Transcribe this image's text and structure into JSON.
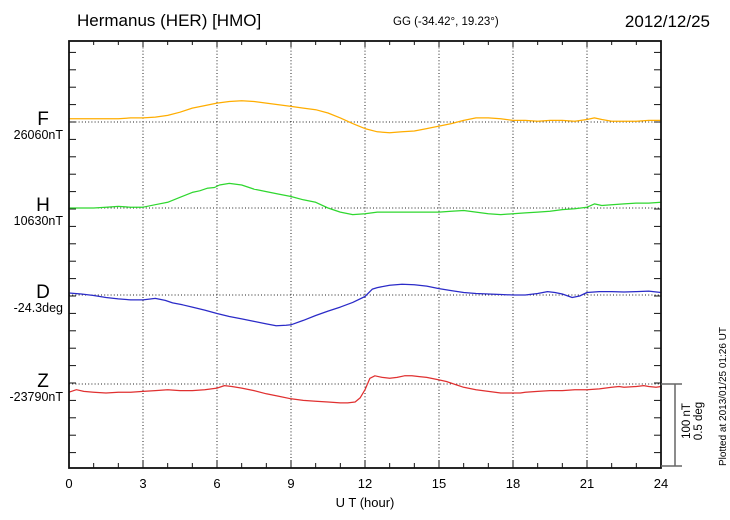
{
  "header": {
    "station_title": "Hermanus (HER)  [HMO]",
    "coordinates": "GG (-34.42°,  19.23°)",
    "date": "2012/12/25"
  },
  "scale_bar": {
    "line1": "100 nT",
    "line2": "0.5 deg"
  },
  "footer_note": "Plotted at 2013/01/25 01:26 UT",
  "chart_data": {
    "type": "line",
    "title": "Hermanus (HER)  [HMO]",
    "subtitle": "GG (-34.42°,  19.23°)  2012/12/25",
    "xlabel": "U T (hour)",
    "x_range_hours": [
      0,
      24
    ],
    "x_ticks": [
      0,
      3,
      6,
      9,
      12,
      15,
      18,
      21,
      24
    ],
    "x_tick_labels": [
      "0",
      "3",
      "6",
      "9",
      "12",
      "15",
      "18",
      "21",
      "24"
    ],
    "grid": "dotted vertical lines every 3 hours; dotted horizontal baseline per component",
    "legend_position": "left margin (component letter + baseline value)",
    "scale": {
      "nT": 100,
      "deg": 0.5
    },
    "series": [
      {
        "name": "F",
        "unit": "nT",
        "base_value": 26060,
        "baseline_label": "26060nT",
        "color": "#FFAD00",
        "points": [
          [
            0,
            4
          ],
          [
            0.5,
            4
          ],
          [
            1,
            4
          ],
          [
            1.5,
            4
          ],
          [
            2,
            4
          ],
          [
            2.5,
            5
          ],
          [
            3,
            5
          ],
          [
            3.5,
            6
          ],
          [
            4,
            8
          ],
          [
            4.5,
            12
          ],
          [
            5,
            17
          ],
          [
            5.5,
            20
          ],
          [
            6,
            23
          ],
          [
            6.5,
            25
          ],
          [
            7,
            26
          ],
          [
            7.5,
            25
          ],
          [
            8,
            23
          ],
          [
            8.5,
            21
          ],
          [
            9,
            19
          ],
          [
            9.5,
            17
          ],
          [
            10,
            15
          ],
          [
            10.5,
            11
          ],
          [
            11,
            5
          ],
          [
            11.5,
            -2
          ],
          [
            12,
            -8
          ],
          [
            12.5,
            -12
          ],
          [
            13,
            -13
          ],
          [
            13.5,
            -12
          ],
          [
            14,
            -11
          ],
          [
            14.5,
            -8
          ],
          [
            15,
            -5
          ],
          [
            15.5,
            -2
          ],
          [
            16,
            2
          ],
          [
            16.5,
            5
          ],
          [
            17,
            5
          ],
          [
            17.5,
            4
          ],
          [
            18,
            2
          ],
          [
            18.5,
            2
          ],
          [
            19,
            1
          ],
          [
            19.5,
            2
          ],
          [
            20,
            2
          ],
          [
            20.5,
            1
          ],
          [
            21,
            3
          ],
          [
            21.3,
            5
          ],
          [
            21.6,
            3
          ],
          [
            22,
            1
          ],
          [
            22.5,
            1
          ],
          [
            23,
            1
          ],
          [
            23.5,
            2
          ],
          [
            24,
            2
          ]
        ]
      },
      {
        "name": "H",
        "unit": "nT",
        "base_value": 10630,
        "baseline_label": "10630nT",
        "color": "#2FD72F",
        "points": [
          [
            0,
            0
          ],
          [
            0.5,
            0
          ],
          [
            1,
            0
          ],
          [
            1.5,
            1
          ],
          [
            2,
            2
          ],
          [
            2.5,
            1
          ],
          [
            3,
            1
          ],
          [
            3.5,
            4
          ],
          [
            4,
            7
          ],
          [
            4.5,
            13
          ],
          [
            5,
            19
          ],
          [
            5.3,
            21
          ],
          [
            5.6,
            24
          ],
          [
            5.9,
            25
          ],
          [
            6.1,
            28
          ],
          [
            6.5,
            30
          ],
          [
            7,
            28
          ],
          [
            7.5,
            23
          ],
          [
            8,
            20
          ],
          [
            8.5,
            17
          ],
          [
            9,
            14
          ],
          [
            9.5,
            10
          ],
          [
            10,
            7
          ],
          [
            10.5,
            0
          ],
          [
            11,
            -5
          ],
          [
            11.5,
            -8
          ],
          [
            12,
            -7
          ],
          [
            12.5,
            -5
          ],
          [
            13,
            -5
          ],
          [
            13.5,
            -5
          ],
          [
            14,
            -5
          ],
          [
            14.5,
            -5
          ],
          [
            15,
            -5
          ],
          [
            15.5,
            -4
          ],
          [
            16,
            -3
          ],
          [
            16.5,
            -5
          ],
          [
            17,
            -7
          ],
          [
            17.5,
            -8
          ],
          [
            18,
            -7
          ],
          [
            18.5,
            -6
          ],
          [
            19,
            -5
          ],
          [
            19.5,
            -4
          ],
          [
            20,
            -2
          ],
          [
            20.5,
            -1
          ],
          [
            21,
            1
          ],
          [
            21.3,
            5
          ],
          [
            21.6,
            3
          ],
          [
            22,
            4
          ],
          [
            22.5,
            5
          ],
          [
            23,
            6
          ],
          [
            23.5,
            6
          ],
          [
            24,
            7
          ]
        ]
      },
      {
        "name": "D",
        "unit": "deg",
        "base_value": -24.3,
        "baseline_label": "-24.3deg",
        "color": "#2B2BC8",
        "points": [
          [
            0,
            0.012
          ],
          [
            0.5,
            0.006
          ],
          [
            1,
            -0.003
          ],
          [
            1.5,
            -0.015
          ],
          [
            2,
            -0.024
          ],
          [
            2.5,
            -0.03
          ],
          [
            3,
            -0.03
          ],
          [
            3.5,
            -0.021
          ],
          [
            3.9,
            -0.033
          ],
          [
            4.2,
            -0.048
          ],
          [
            4.6,
            -0.06
          ],
          [
            5,
            -0.074
          ],
          [
            5.5,
            -0.092
          ],
          [
            6,
            -0.113
          ],
          [
            6.5,
            -0.131
          ],
          [
            7,
            -0.146
          ],
          [
            7.5,
            -0.161
          ],
          [
            8,
            -0.176
          ],
          [
            8.4,
            -0.188
          ],
          [
            8.8,
            -0.185
          ],
          [
            9,
            -0.182
          ],
          [
            9.5,
            -0.155
          ],
          [
            10,
            -0.125
          ],
          [
            10.5,
            -0.098
          ],
          [
            11,
            -0.074
          ],
          [
            11.5,
            -0.045
          ],
          [
            12,
            -0.009
          ],
          [
            12.3,
            0.036
          ],
          [
            12.5,
            0.045
          ],
          [
            13,
            0.06
          ],
          [
            13.5,
            0.065
          ],
          [
            14,
            0.063
          ],
          [
            14.5,
            0.054
          ],
          [
            15,
            0.039
          ],
          [
            15.5,
            0.027
          ],
          [
            16,
            0.015
          ],
          [
            16.5,
            0.009
          ],
          [
            17,
            0.006
          ],
          [
            17.5,
            0.003
          ],
          [
            18,
            0
          ],
          [
            18.5,
            0
          ],
          [
            19,
            0.009
          ],
          [
            19.4,
            0.021
          ],
          [
            19.7,
            0.015
          ],
          [
            20,
            0.006
          ],
          [
            20.4,
            -0.015
          ],
          [
            20.7,
            -0.006
          ],
          [
            21,
            0.015
          ],
          [
            21.5,
            0.021
          ],
          [
            22,
            0.021
          ],
          [
            22.5,
            0.018
          ],
          [
            23,
            0.021
          ],
          [
            23.5,
            0.024
          ],
          [
            24,
            0.015
          ]
        ]
      },
      {
        "name": "Z",
        "unit": "nT",
        "base_value": -23790,
        "baseline_label": "-23790nT",
        "color": "#E03030",
        "points": [
          [
            0,
            -10
          ],
          [
            0.3,
            -7
          ],
          [
            0.6,
            -9
          ],
          [
            1,
            -10
          ],
          [
            1.5,
            -11
          ],
          [
            2,
            -10
          ],
          [
            2.5,
            -10
          ],
          [
            3,
            -9
          ],
          [
            3.5,
            -8
          ],
          [
            4,
            -7
          ],
          [
            4.5,
            -8
          ],
          [
            5,
            -8
          ],
          [
            5.5,
            -7
          ],
          [
            6,
            -5
          ],
          [
            6.3,
            -2
          ],
          [
            6.6,
            -3
          ],
          [
            7,
            -5
          ],
          [
            7.5,
            -8
          ],
          [
            8,
            -12
          ],
          [
            8.5,
            -15
          ],
          [
            9,
            -18
          ],
          [
            9.5,
            -20
          ],
          [
            10,
            -21
          ],
          [
            10.5,
            -22
          ],
          [
            11,
            -23
          ],
          [
            11.3,
            -23
          ],
          [
            11.6,
            -22
          ],
          [
            11.8,
            -17
          ],
          [
            12,
            -7
          ],
          [
            12.2,
            7
          ],
          [
            12.4,
            10
          ],
          [
            12.7,
            8
          ],
          [
            13,
            7
          ],
          [
            13.3,
            8
          ],
          [
            13.6,
            10
          ],
          [
            13.9,
            10
          ],
          [
            14.2,
            9
          ],
          [
            14.5,
            8
          ],
          [
            15,
            5
          ],
          [
            15.3,
            3
          ],
          [
            15.6,
            0
          ],
          [
            16,
            -4
          ],
          [
            16.5,
            -7
          ],
          [
            17,
            -9
          ],
          [
            17.5,
            -11
          ],
          [
            18,
            -11
          ],
          [
            18.3,
            -11
          ],
          [
            18.5,
            -10
          ],
          [
            19,
            -9
          ],
          [
            19.5,
            -8
          ],
          [
            20,
            -8
          ],
          [
            20.5,
            -7
          ],
          [
            21,
            -7
          ],
          [
            21.5,
            -6
          ],
          [
            22,
            -4
          ],
          [
            22.3,
            -3
          ],
          [
            22.5,
            -4
          ],
          [
            23,
            -3
          ],
          [
            23.3,
            -2
          ],
          [
            23.5,
            -3
          ],
          [
            23.8,
            -4
          ],
          [
            24,
            -3
          ]
        ]
      }
    ]
  }
}
